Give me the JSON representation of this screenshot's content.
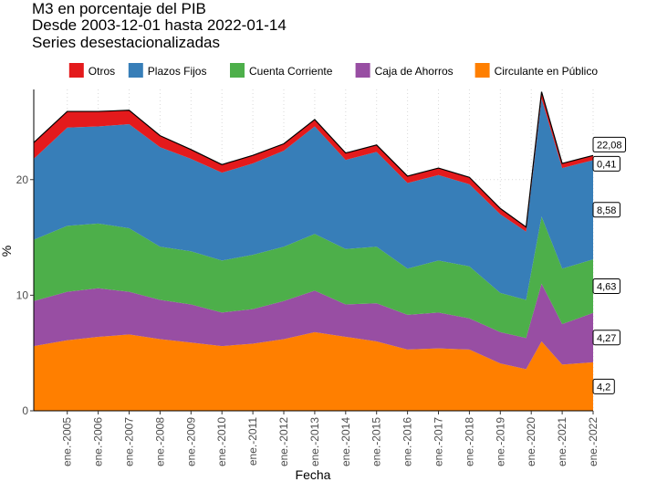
{
  "chart_data": {
    "type": "stacked_area",
    "title": "M3 en porcentaje del PIB",
    "subtitle": "Desde 2003-12-01 hasta 2022-01-14",
    "caption": "Series desestacionalizadas",
    "x_label": "Fecha",
    "y_label": "%",
    "x": [
      "2003-12",
      "2005-01",
      "2006-01",
      "2007-01",
      "2008-01",
      "2009-01",
      "2010-01",
      "2011-01",
      "2012-01",
      "2013-01",
      "2014-01",
      "2015-01",
      "2016-01",
      "2017-01",
      "2018-01",
      "2019-01",
      "2019-11",
      "2020-05",
      "2021-01",
      "2022-01"
    ],
    "xlim": [
      "2003-12",
      "2022-01"
    ],
    "xticks": [
      {
        "value": "2005-01",
        "label": "ene.-2005"
      },
      {
        "value": "2006-01",
        "label": "ene.-2006"
      },
      {
        "value": "2007-01",
        "label": "ene.-2007"
      },
      {
        "value": "2008-01",
        "label": "ene.-2008"
      },
      {
        "value": "2009-01",
        "label": "ene.-2009"
      },
      {
        "value": "2010-01",
        "label": "ene.-2010"
      },
      {
        "value": "2011-01",
        "label": "ene.-2011"
      },
      {
        "value": "2012-01",
        "label": "ene.-2012"
      },
      {
        "value": "2013-01",
        "label": "ene.-2013"
      },
      {
        "value": "2014-01",
        "label": "ene.-2014"
      },
      {
        "value": "2015-01",
        "label": "ene.-2015"
      },
      {
        "value": "2016-01",
        "label": "ene.-2016"
      },
      {
        "value": "2017-01",
        "label": "ene.-2017"
      },
      {
        "value": "2018-01",
        "label": "ene.-2018"
      },
      {
        "value": "2019-01",
        "label": "ene.-2019"
      },
      {
        "value": "2020-01",
        "label": "ene.-2020"
      },
      {
        "value": "2021-01",
        "label": "ene.-2021"
      },
      {
        "value": "2022-01",
        "label": "ene.-2022"
      }
    ],
    "ylim": [
      0,
      27.8
    ],
    "yticks": [
      0,
      10,
      20
    ],
    "grid": true,
    "legend": "top",
    "series": [
      {
        "name": "Circulante en Público",
        "color": "#ff7f00",
        "end_label": "4,2",
        "values": [
          5.6,
          6.1,
          6.4,
          6.6,
          6.2,
          5.9,
          5.6,
          5.8,
          6.2,
          6.8,
          6.4,
          6.0,
          5.3,
          5.4,
          5.3,
          4.1,
          3.6,
          6.0,
          4.0,
          4.2
        ]
      },
      {
        "name": "Caja de Ahorros",
        "color": "#984ea3",
        "end_label": "4,27",
        "values": [
          3.9,
          4.2,
          4.2,
          3.7,
          3.4,
          3.3,
          2.9,
          3.0,
          3.3,
          3.6,
          2.8,
          3.3,
          3.0,
          3.1,
          2.7,
          2.7,
          2.7,
          5.0,
          3.5,
          4.27
        ]
      },
      {
        "name": "Cuenta Corriente",
        "color": "#4daf4a",
        "end_label": "4,63",
        "values": [
          5.3,
          5.7,
          5.6,
          5.5,
          4.6,
          4.6,
          4.5,
          4.7,
          4.7,
          4.9,
          4.8,
          4.9,
          4.0,
          4.5,
          4.5,
          3.4,
          3.3,
          5.8,
          4.8,
          4.63
        ]
      },
      {
        "name": "Plazos Fijos",
        "color": "#377eb8",
        "end_label": "8,58",
        "values": [
          7.0,
          8.5,
          8.4,
          9.0,
          8.6,
          8.0,
          7.6,
          7.9,
          8.3,
          9.3,
          7.7,
          8.2,
          7.4,
          7.4,
          7.1,
          6.8,
          5.9,
          10.2,
          8.7,
          8.58
        ]
      },
      {
        "name": "Otros",
        "color": "#e41a1c",
        "end_label": "0,41",
        "values": [
          1.4,
          1.4,
          1.3,
          1.2,
          1.0,
          0.8,
          0.7,
          0.7,
          0.6,
          0.6,
          0.6,
          0.6,
          0.6,
          0.6,
          0.6,
          0.5,
          0.4,
          0.6,
          0.4,
          0.41
        ]
      }
    ],
    "total_label": {
      "value": 22.08,
      "label": "22,08"
    }
  }
}
